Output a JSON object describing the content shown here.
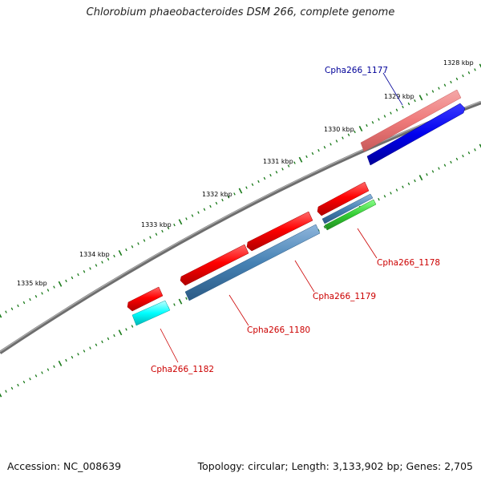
{
  "title": "Chlorobium phaeobacteroides DSM 266, complete genome",
  "footer": {
    "accession": "Accession: NC_008639",
    "topology": "Topology: circular; Length: 3,133,902 bp; Genes: 2,705"
  },
  "colors": {
    "backbone": "#808080",
    "tick": "#1a7a1a",
    "forward_gene": "#ff0000",
    "forward_gene_light": "#f08080",
    "reverse_gene_blue": "#0000ee",
    "reverse_gene_steel": "#4682b4",
    "reverse_gene_green": "#33cc33",
    "reverse_gene_cyan": "#00ffff",
    "label_forward": "#cc0000",
    "label_reverse": "#000099"
  },
  "ticks": [
    "1328 kbp",
    "1329 kbp",
    "1330 kbp",
    "1331 kbp",
    "1332 kbp",
    "1333 kbp",
    "1334 kbp",
    "1335 kbp"
  ],
  "genes": [
    {
      "label": "Cpha266_1177",
      "label_color": "#000099"
    },
    {
      "label": "Cpha266_1178",
      "label_color": "#cc0000"
    },
    {
      "label": "Cpha266_1179",
      "label_color": "#cc0000"
    },
    {
      "label": "Cpha266_1180",
      "label_color": "#cc0000"
    },
    {
      "label": "Cpha266_1182",
      "label_color": "#cc0000"
    }
  ]
}
